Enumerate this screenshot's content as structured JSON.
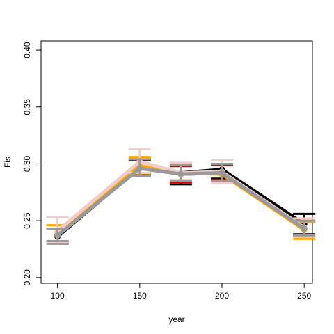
{
  "chart_data": {
    "type": "line",
    "title": "",
    "xlabel": "year",
    "ylabel": "Fis",
    "x": [
      100,
      150,
      175,
      200,
      250
    ],
    "xlim": [
      90,
      255
    ],
    "ylim": [
      0.195,
      0.408
    ],
    "x_ticks": [
      100,
      150,
      200,
      250
    ],
    "y_ticks": [
      0.2,
      0.25,
      0.3,
      0.35,
      0.4
    ],
    "x_tick_labels": [
      "100",
      "150",
      "200",
      "250"
    ],
    "y_tick_labels": [
      "0.20",
      "0.25",
      "0.30",
      "0.35",
      "0.40"
    ],
    "grid": false,
    "legend": "none",
    "series": [
      {
        "color": "#000000",
        "values": [
          0.236,
          0.297,
          0.292,
          0.295,
          0.247
        ],
        "lower": [
          0.23,
          0.291,
          0.282,
          0.287,
          0.238
        ],
        "upper": [
          0.243,
          0.303,
          0.3,
          0.3,
          0.256
        ]
      },
      {
        "color": "#dd0000",
        "values": [
          0.237,
          0.298,
          0.291,
          0.292,
          0.243
        ],
        "lower": [
          0.231,
          0.292,
          0.284,
          0.286,
          0.237
        ],
        "upper": [
          0.243,
          0.304,
          0.298,
          0.299,
          0.249
        ]
      },
      {
        "color": "#ffa500",
        "values": [
          0.238,
          0.298,
          0.292,
          0.291,
          0.242
        ],
        "lower": [
          0.231,
          0.29,
          0.285,
          0.284,
          0.234
        ],
        "upper": [
          0.246,
          0.306,
          0.299,
          0.3,
          0.249
        ]
      },
      {
        "color": "#f2cdc8",
        "values": [
          0.241,
          0.302,
          0.292,
          0.293,
          0.244
        ],
        "lower": [
          0.231,
          0.292,
          0.286,
          0.283,
          0.236
        ],
        "upper": [
          0.253,
          0.313,
          0.301,
          0.303,
          0.252
        ]
      },
      {
        "color": "#999999",
        "values": [
          0.237,
          0.296,
          0.291,
          0.292,
          0.243
        ],
        "lower": [
          0.232,
          0.289,
          0.285,
          0.285,
          0.237
        ],
        "upper": [
          0.243,
          0.304,
          0.299,
          0.3,
          0.25
        ]
      }
    ]
  }
}
